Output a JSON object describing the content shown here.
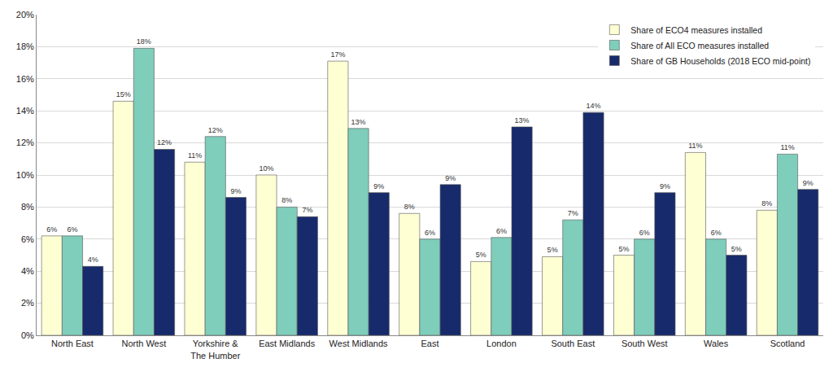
{
  "chart_data": {
    "type": "bar",
    "categories": [
      "North East",
      "North West",
      "Yorkshire & The Humber",
      "East Midlands",
      "West Midlands",
      "East",
      "London",
      "South East",
      "South West",
      "Wales",
      "Scotland"
    ],
    "series": [
      {
        "name": "Share of ECO4 measures installed",
        "color": "#ffffd4",
        "values": [
          6.2,
          14.6,
          10.8,
          10.0,
          17.1,
          7.6,
          4.6,
          4.9,
          5.0,
          11.4,
          7.8
        ],
        "value_labels": [
          "6%",
          "15%",
          "11%",
          "10%",
          "17%",
          "8%",
          "5%",
          "5%",
          "5%",
          "11%",
          "8%"
        ]
      },
      {
        "name": "Share of All ECO measures installed",
        "color": "#7fcdbb",
        "values": [
          6.2,
          17.9,
          12.4,
          8.0,
          12.9,
          6.0,
          6.1,
          7.2,
          6.0,
          6.0,
          11.3
        ],
        "value_labels": [
          "6%",
          "18%",
          "12%",
          "8%",
          "13%",
          "6%",
          "6%",
          "7%",
          "6%",
          "6%",
          "11%"
        ]
      },
      {
        "name": "Share of GB Households (2018 ECO mid-point)",
        "color": "#172a6b",
        "values": [
          4.3,
          11.6,
          8.6,
          7.4,
          8.9,
          9.4,
          13.0,
          13.9,
          8.9,
          5.0,
          9.1
        ],
        "value_labels": [
          "4%",
          "12%",
          "9%",
          "7%",
          "9%",
          "9%",
          "13%",
          "14%",
          "9%",
          "5%",
          "9%"
        ]
      }
    ],
    "ylim": [
      0,
      20
    ],
    "yticks": [
      {
        "value": 0,
        "label": "0%"
      },
      {
        "value": 2,
        "label": "2%"
      },
      {
        "value": 4,
        "label": "4%"
      },
      {
        "value": 6,
        "label": "6%"
      },
      {
        "value": 8,
        "label": "8%"
      },
      {
        "value": 10,
        "label": "10%"
      },
      {
        "value": 12,
        "label": "12%"
      },
      {
        "value": 14,
        "label": "14%"
      },
      {
        "value": 16,
        "label": "16%"
      },
      {
        "value": 18,
        "label": "18%"
      },
      {
        "value": 20,
        "label": "20%"
      }
    ],
    "grid": true,
    "legend": "top right",
    "data_labels": true
  }
}
